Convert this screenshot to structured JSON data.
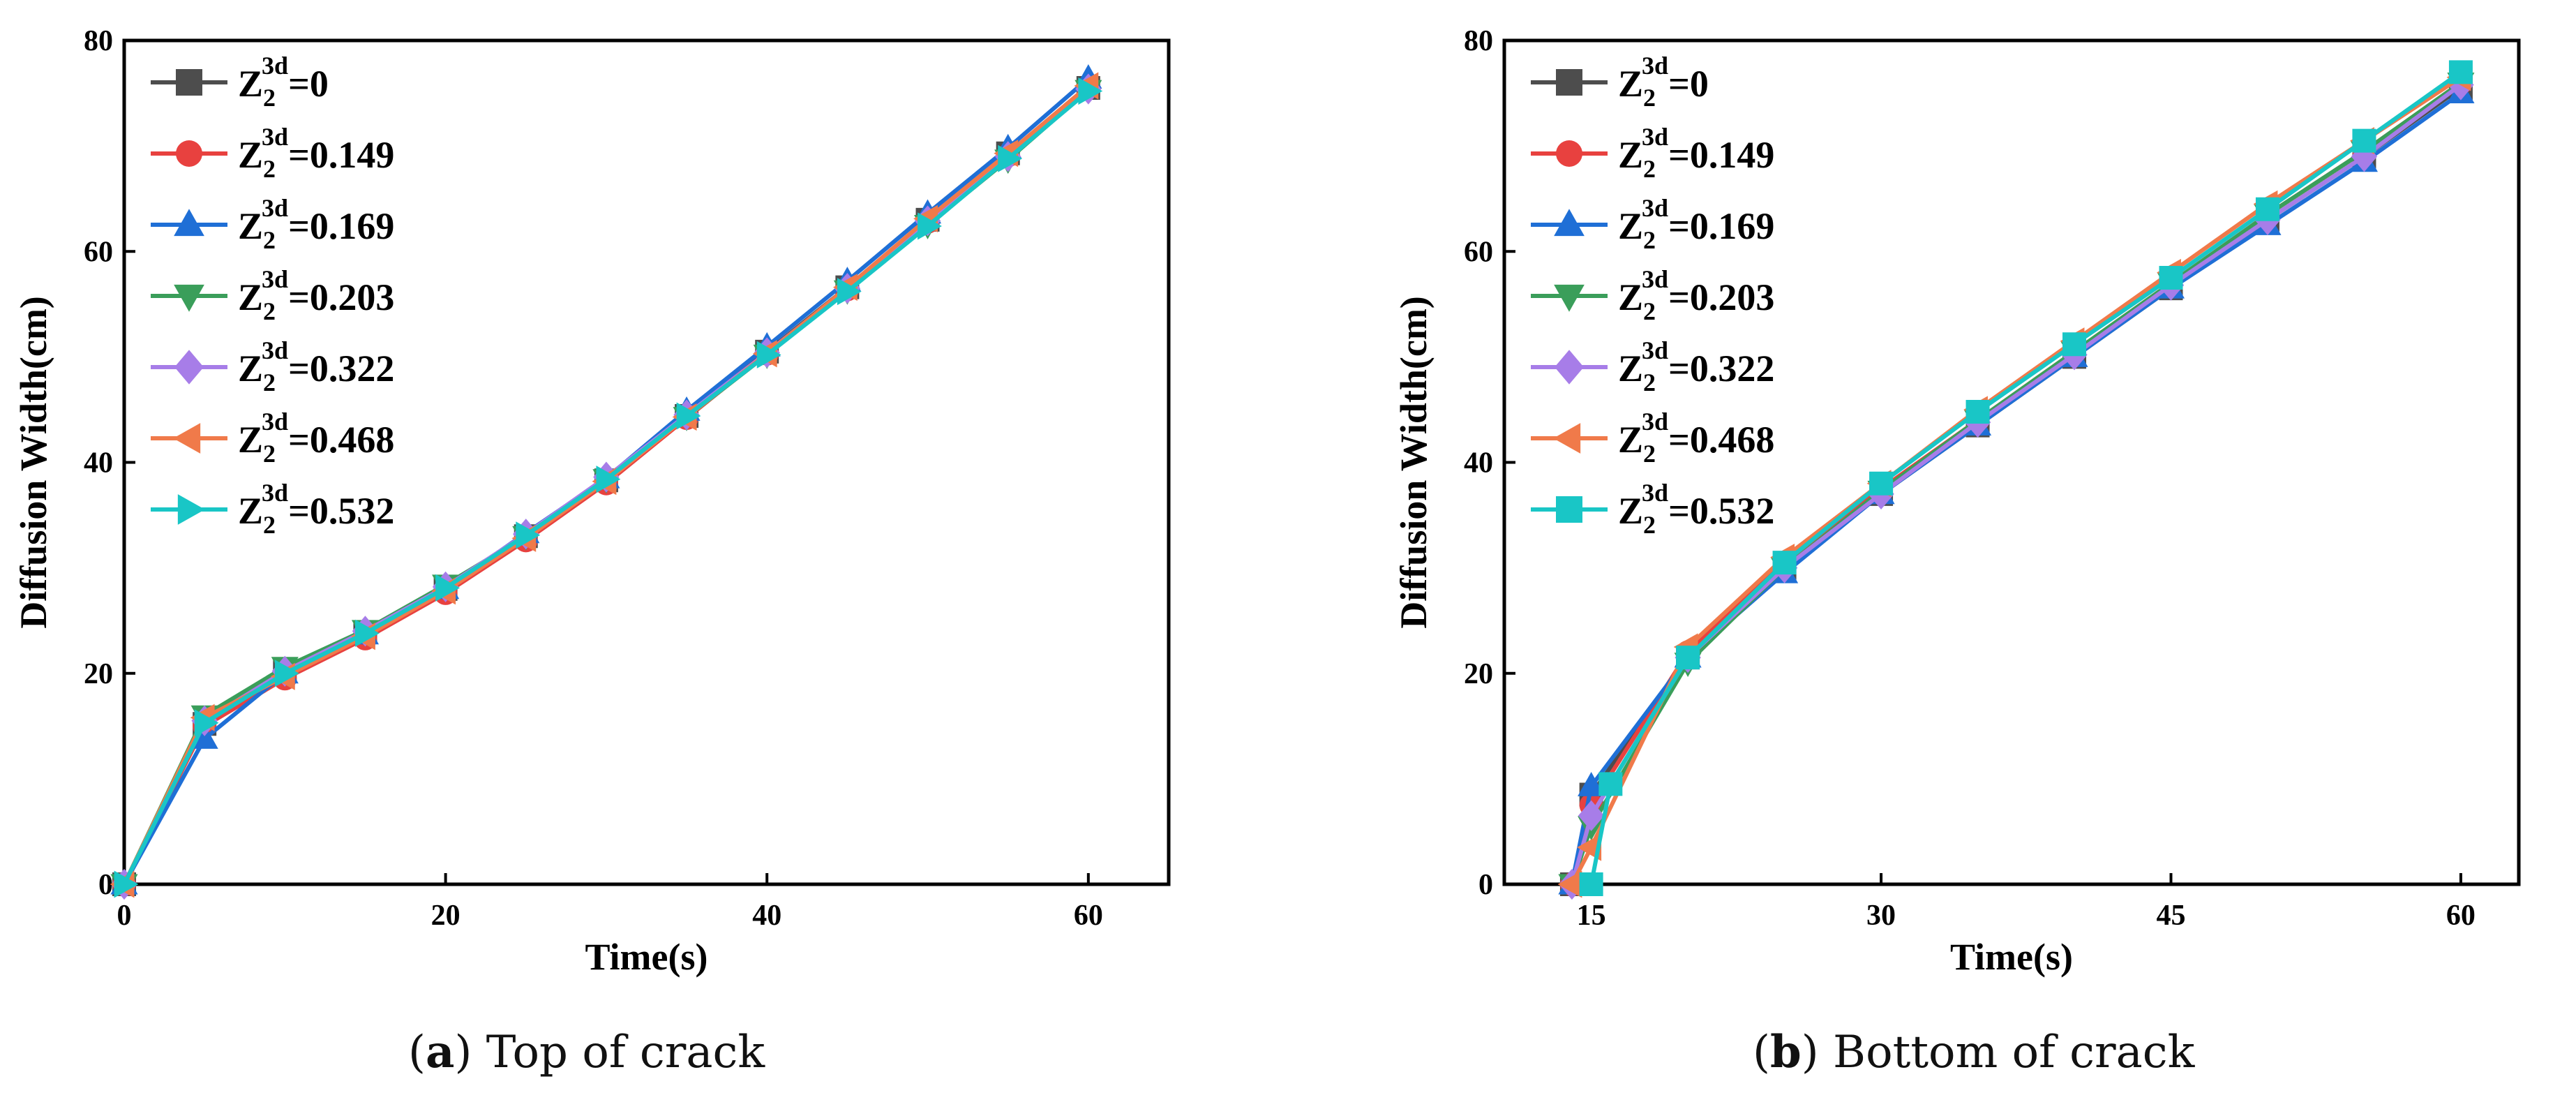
{
  "figure": {
    "captions": [
      {
        "letter": "a",
        "open": "(",
        "close": ")",
        "text": " Top of crack"
      },
      {
        "letter": "b",
        "open": "(",
        "close": ")",
        "text": " Bottom of crack"
      }
    ]
  },
  "chart_data": [
    {
      "type": "line",
      "panel": "a",
      "title": "",
      "xlabel": "Time(s)",
      "ylabel": "Diffusion Width(cm)",
      "xlim": [
        0,
        65
      ],
      "ylim": [
        0,
        80
      ],
      "xticks": [
        0,
        20,
        40,
        60
      ],
      "yticks": [
        0,
        20,
        40,
        60,
        80
      ],
      "legend_position": "top-left",
      "series": [
        {
          "name_base": "Z",
          "sub": "2",
          "sup": "3d",
          "value_label": "=0",
          "color": "#4d4d4d",
          "marker": "square",
          "x": [
            0,
            5,
            10,
            15,
            20,
            25,
            30,
            35,
            40,
            45,
            50,
            55,
            60
          ],
          "y": [
            0,
            15.2,
            20.3,
            23.9,
            28.0,
            33.0,
            38.3,
            44.4,
            50.5,
            56.6,
            63.0,
            69.3,
            75.5
          ]
        },
        {
          "name_base": "Z",
          "sub": "2",
          "sup": "3d",
          "value_label": "=0.149",
          "color": "#e8413f",
          "marker": "circle",
          "x": [
            0,
            5,
            10,
            15,
            20,
            25,
            30,
            35,
            40,
            45,
            50,
            55,
            60
          ],
          "y": [
            0,
            15.0,
            19.5,
            23.3,
            27.6,
            32.6,
            38.0,
            44.2,
            50.3,
            56.4,
            62.8,
            69.1,
            75.6
          ]
        },
        {
          "name_base": "Z",
          "sub": "2",
          "sup": "3d",
          "value_label": "=0.169",
          "color": "#1f6fd6",
          "marker": "triangle-up",
          "x": [
            0,
            5,
            10,
            15,
            20,
            25,
            30,
            35,
            40,
            45,
            50,
            55,
            60
          ],
          "y": [
            0,
            13.8,
            20.0,
            23.7,
            28.0,
            33.3,
            38.5,
            44.9,
            51.0,
            57.2,
            63.6,
            69.8,
            76.4
          ]
        },
        {
          "name_base": "Z",
          "sub": "2",
          "sup": "3d",
          "value_label": "=0.203",
          "color": "#3a9e5a",
          "marker": "triangle-down",
          "x": [
            0,
            5,
            10,
            15,
            20,
            25,
            30,
            35,
            40,
            45,
            50,
            55,
            60
          ],
          "y": [
            0,
            16.0,
            20.6,
            24.1,
            28.4,
            33.0,
            38.4,
            44.3,
            50.2,
            56.3,
            62.5,
            68.7,
            75.3
          ]
        },
        {
          "name_base": "Z",
          "sub": "2",
          "sup": "3d",
          "value_label": "=0.322",
          "color": "#a77de8",
          "marker": "diamond",
          "x": [
            0,
            5,
            10,
            15,
            20,
            25,
            30,
            35,
            40,
            45,
            50,
            55,
            60
          ],
          "y": [
            0,
            15.5,
            20.2,
            24.0,
            28.2,
            33.2,
            38.6,
            44.5,
            50.4,
            56.5,
            62.9,
            69.0,
            75.4
          ]
        },
        {
          "name_base": "Z",
          "sub": "2",
          "sup": "3d",
          "value_label": "=0.468",
          "color": "#f07a4a",
          "marker": "triangle-left",
          "x": [
            0,
            5,
            10,
            15,
            20,
            25,
            30,
            35,
            40,
            45,
            50,
            55,
            60
          ],
          "y": [
            0,
            15.8,
            19.7,
            23.5,
            27.8,
            32.8,
            38.2,
            44.3,
            50.3,
            56.6,
            63.1,
            69.3,
            75.7
          ]
        },
        {
          "name_base": "Z",
          "sub": "2",
          "sup": "3d",
          "value_label": "=0.532",
          "color": "#19c6c6",
          "marker": "triangle-right",
          "x": [
            0,
            5,
            10,
            15,
            20,
            25,
            30,
            35,
            40,
            45,
            50,
            55,
            60
          ],
          "y": [
            0,
            15.3,
            20.0,
            23.8,
            28.1,
            33.1,
            38.4,
            44.4,
            50.2,
            56.2,
            62.4,
            68.8,
            75.2
          ]
        }
      ]
    },
    {
      "type": "line",
      "panel": "b",
      "title": "",
      "xlabel": "Time(s)",
      "ylabel": "Diffusion Width(cm)",
      "xlim": [
        10.5,
        63
      ],
      "ylim": [
        0,
        80
      ],
      "xticks": [
        15,
        30,
        45,
        60
      ],
      "yticks": [
        0,
        20,
        40,
        60,
        80
      ],
      "legend_position": "top-left",
      "series": [
        {
          "name_base": "Z",
          "sub": "2",
          "sup": "3d",
          "value_label": "=0",
          "color": "#4d4d4d",
          "marker": "square",
          "x": [
            14,
            15,
            20,
            25,
            30,
            35,
            40,
            45,
            50,
            55,
            60
          ],
          "y": [
            0,
            8.5,
            21.5,
            30.0,
            37.0,
            43.5,
            50.0,
            56.5,
            63.0,
            69.0,
            75.5
          ]
        },
        {
          "name_base": "Z",
          "sub": "2",
          "sup": "3d",
          "value_label": "=0.149",
          "color": "#e8413f",
          "marker": "circle",
          "x": [
            14,
            15,
            20,
            25,
            30,
            35,
            40,
            45,
            50,
            55,
            60
          ],
          "y": [
            0,
            7.5,
            22.0,
            30.5,
            37.5,
            44.0,
            50.5,
            57.0,
            63.5,
            69.5,
            76.0
          ]
        },
        {
          "name_base": "Z",
          "sub": "2",
          "sup": "3d",
          "value_label": "=0.169",
          "color": "#1f6fd6",
          "marker": "triangle-up",
          "x": [
            14,
            15,
            20,
            25,
            30,
            35,
            40,
            45,
            50,
            55,
            60
          ],
          "y": [
            0,
            9.3,
            21.5,
            29.5,
            37.0,
            43.5,
            50.0,
            56.5,
            62.5,
            68.5,
            75.0
          ]
        },
        {
          "name_base": "Z",
          "sub": "2",
          "sup": "3d",
          "value_label": "=0.203",
          "color": "#3a9e5a",
          "marker": "triangle-down",
          "x": [
            14,
            15,
            20,
            25,
            30,
            35,
            40,
            45,
            50,
            55,
            60
          ],
          "y": [
            0,
            5.5,
            21.0,
            30.0,
            37.3,
            44.0,
            50.5,
            57.0,
            63.5,
            69.5,
            76.0
          ]
        },
        {
          "name_base": "Z",
          "sub": "2",
          "sup": "3d",
          "value_label": "=0.322",
          "color": "#a77de8",
          "marker": "diamond",
          "x": [
            14,
            15,
            20,
            25,
            30,
            35,
            40,
            45,
            50,
            55,
            60
          ],
          "y": [
            0,
            6.5,
            21.5,
            30.0,
            37.0,
            43.8,
            50.2,
            56.8,
            63.0,
            69.0,
            75.8
          ]
        },
        {
          "name_base": "Z",
          "sub": "2",
          "sup": "3d",
          "value_label": "=0.468",
          "color": "#f07a4a",
          "marker": "triangle-left",
          "x": [
            14,
            15,
            20,
            25,
            30,
            35,
            40,
            45,
            50,
            55,
            60
          ],
          "y": [
            0,
            3.5,
            22.5,
            31.0,
            38.0,
            45.0,
            51.5,
            58.0,
            64.5,
            70.5,
            76.5
          ]
        },
        {
          "name_base": "Z",
          "sub": "2",
          "sup": "3d",
          "value_label": "=0.532",
          "color": "#19c6c6",
          "marker": "square",
          "x": [
            15,
            16,
            20,
            25,
            30,
            35,
            40,
            45,
            50,
            55,
            60
          ],
          "y": [
            0,
            9.5,
            21.5,
            30.5,
            38.0,
            44.8,
            51.2,
            57.5,
            64.0,
            70.5,
            77.0
          ]
        }
      ]
    }
  ]
}
